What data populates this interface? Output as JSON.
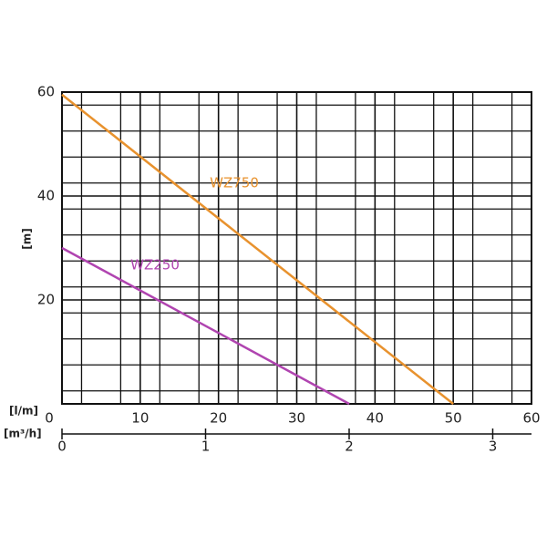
{
  "chart_data": {
    "type": "line",
    "y_label": "[m]",
    "x_label": "[l/m]",
    "x2_label": "[m³/h]",
    "series": [
      {
        "name": "WZ750",
        "color": "#e8922e",
        "x": [
          0,
          50
        ],
        "values": [
          59.5,
          0
        ]
      },
      {
        "name": "WZ250",
        "color": "#b044b0",
        "x": [
          0,
          36.7
        ],
        "values": [
          30,
          0
        ]
      }
    ],
    "xlim": [
      0,
      60
    ],
    "xticks": [
      0,
      10,
      20,
      30,
      40,
      50,
      60
    ],
    "ylim": [
      0,
      60
    ],
    "yticks": [
      20,
      40,
      60
    ],
    "x2lim": [
      0,
      3.27
    ],
    "x2ticks": [
      0,
      1,
      2,
      3
    ],
    "grid": true
  }
}
